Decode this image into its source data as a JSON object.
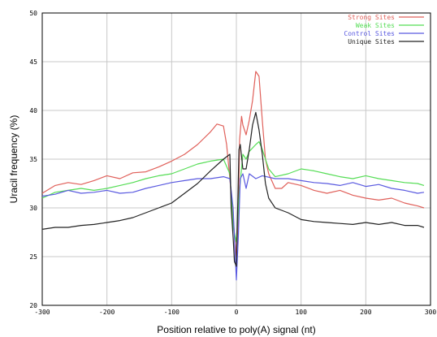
{
  "chart_data": {
    "type": "line",
    "title": "",
    "xlabel": "Position relative to poly(A) signal (nt)",
    "ylabel": "Uracil frequency (%)",
    "xlim": [
      -300,
      300
    ],
    "ylim": [
      20,
      50
    ],
    "xticks": [
      -300,
      -200,
      -100,
      0,
      100,
      200,
      300
    ],
    "xtick_labels": [
      "-300",
      "-200",
      "-100",
      "0",
      "100",
      "200",
      "300"
    ],
    "yticks": [
      20,
      25,
      30,
      35,
      40,
      45,
      50
    ],
    "ytick_labels": [
      "20",
      "25",
      "30",
      "35",
      "40",
      "45",
      "50"
    ],
    "grid": true,
    "legend_position": "top-right",
    "series": [
      {
        "name": "Strong Sites",
        "color": "#e0605a",
        "x": [
          -300,
          -280,
          -260,
          -240,
          -220,
          -200,
          -180,
          -160,
          -140,
          -120,
          -100,
          -80,
          -60,
          -40,
          -30,
          -20,
          -15,
          -10,
          -5,
          0,
          3,
          5,
          8,
          10,
          15,
          20,
          25,
          30,
          35,
          40,
          45,
          50,
          60,
          70,
          80,
          100,
          120,
          140,
          160,
          180,
          200,
          220,
          240,
          260,
          280,
          290
        ],
        "values": [
          31.5,
          32.3,
          32.6,
          32.4,
          32.8,
          33.3,
          33.0,
          33.6,
          33.7,
          34.2,
          34.8,
          35.5,
          36.5,
          37.8,
          38.6,
          38.4,
          36.5,
          33.0,
          29.0,
          25.0,
          29.0,
          37.0,
          39.4,
          38.5,
          37.5,
          39.0,
          41.0,
          44.0,
          43.5,
          39.0,
          35.0,
          33.5,
          32.0,
          32.0,
          32.6,
          32.3,
          31.8,
          31.5,
          31.8,
          31.3,
          31.0,
          30.8,
          31.0,
          30.5,
          30.2,
          30.0
        ]
      },
      {
        "name": "Weak Sites",
        "color": "#55dd55",
        "x": [
          -300,
          -280,
          -260,
          -240,
          -220,
          -200,
          -180,
          -160,
          -140,
          -120,
          -100,
          -80,
          -60,
          -40,
          -20,
          -10,
          -5,
          0,
          5,
          10,
          15,
          20,
          30,
          35,
          40,
          45,
          50,
          60,
          80,
          100,
          120,
          140,
          160,
          180,
          200,
          220,
          240,
          260,
          280,
          290
        ],
        "values": [
          31.0,
          31.6,
          31.8,
          32.0,
          31.8,
          32.0,
          32.3,
          32.6,
          33.0,
          33.3,
          33.5,
          34.0,
          34.5,
          34.8,
          35.0,
          33.5,
          28.0,
          26.5,
          32.0,
          35.5,
          35.0,
          35.8,
          36.5,
          36.8,
          36.0,
          35.0,
          34.0,
          33.2,
          33.5,
          34.0,
          33.8,
          33.5,
          33.2,
          33.0,
          33.3,
          33.0,
          32.8,
          32.6,
          32.5,
          32.3
        ]
      },
      {
        "name": "Control Sites",
        "color": "#5a5ae0",
        "x": [
          -300,
          -280,
          -260,
          -240,
          -220,
          -200,
          -180,
          -160,
          -140,
          -120,
          -100,
          -80,
          -60,
          -40,
          -20,
          -10,
          -5,
          0,
          3,
          6,
          10,
          15,
          20,
          30,
          40,
          60,
          80,
          100,
          120,
          140,
          160,
          180,
          200,
          220,
          240,
          260,
          280,
          290
        ],
        "values": [
          31.2,
          31.4,
          31.8,
          31.5,
          31.6,
          31.8,
          31.5,
          31.6,
          32.0,
          32.3,
          32.6,
          32.8,
          33.0,
          33.0,
          33.2,
          33.0,
          30.0,
          22.6,
          27.0,
          33.0,
          33.5,
          32.0,
          33.5,
          33.0,
          33.3,
          33.0,
          33.0,
          32.8,
          32.6,
          32.5,
          32.3,
          32.6,
          32.2,
          32.4,
          32.0,
          31.8,
          31.5,
          31.6
        ]
      },
      {
        "name": "Unique Sites",
        "color": "#222222",
        "x": [
          -300,
          -280,
          -260,
          -240,
          -220,
          -200,
          -180,
          -160,
          -140,
          -120,
          -100,
          -80,
          -60,
          -40,
          -20,
          -10,
          -8,
          -5,
          -3,
          0,
          2,
          4,
          6,
          10,
          15,
          20,
          25,
          30,
          35,
          40,
          45,
          50,
          60,
          80,
          100,
          120,
          140,
          160,
          180,
          200,
          220,
          240,
          260,
          280,
          290
        ],
        "values": [
          27.8,
          28.0,
          28.0,
          28.2,
          28.3,
          28.5,
          28.7,
          29.0,
          29.5,
          30.0,
          30.5,
          31.5,
          32.5,
          33.8,
          35.0,
          35.5,
          30.0,
          27.0,
          24.5,
          24.0,
          30.0,
          36.0,
          36.5,
          34.0,
          34.0,
          36.0,
          38.5,
          39.8,
          38.0,
          35.5,
          32.5,
          31.0,
          30.0,
          29.5,
          28.8,
          28.6,
          28.5,
          28.4,
          28.3,
          28.5,
          28.3,
          28.5,
          28.2,
          28.2,
          28.0
        ]
      }
    ]
  }
}
